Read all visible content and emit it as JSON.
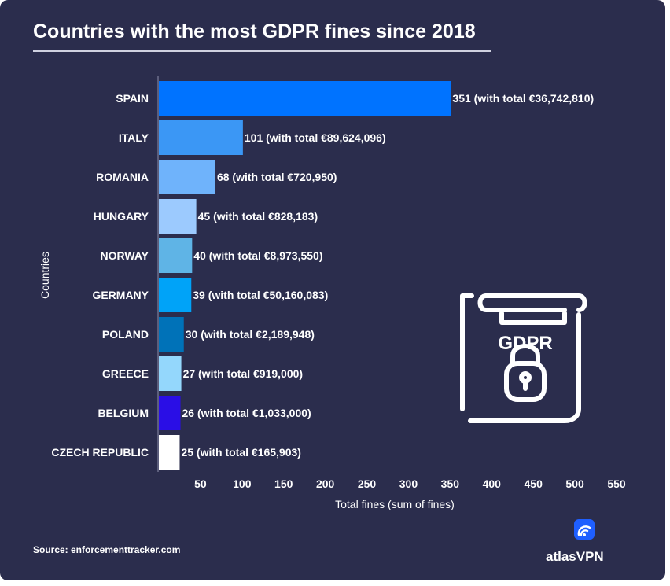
{
  "page": {
    "title": "Countries with the most GDPR fines since 2018",
    "source": "Source: enforcementtracker.com",
    "brand": "atlasVPN",
    "illustration_text": "GDPR"
  },
  "chart_data": {
    "type": "bar",
    "orientation": "horizontal",
    "title": "Countries with the most GDPR fines since 2018",
    "xlabel": "Total fines (sum of fines)",
    "ylabel": "Countries",
    "xlim": [
      0,
      550
    ],
    "xticks": [
      50,
      100,
      150,
      200,
      250,
      300,
      350,
      400,
      450,
      500,
      550
    ],
    "grid": false,
    "categories": [
      "SPAIN",
      "ITALY",
      "ROMANIA",
      "HUNGARY",
      "NORWAY",
      "GERMANY",
      "POLAND",
      "GREECE",
      "BELGIUM",
      "CZECH REPUBLIC"
    ],
    "values": [
      351,
      101,
      68,
      45,
      40,
      39,
      30,
      27,
      26,
      25
    ],
    "data_labels": [
      "351 (with total €36,742,810)",
      "101 (with total €89,624,096)",
      "68 (with total €720,950)",
      "45 (with total €828,183)",
      "40 (with total €8,973,550)",
      "39 (with total €50,160,083)",
      "30 (with total €2,189,948)",
      "27 (with total €919,000)",
      "26 (with total €1,033,000)",
      "25 (with total €165,903)"
    ],
    "colors": [
      "#0073ff",
      "#3b97f5",
      "#6fb3fb",
      "#9ccafe",
      "#5fb4e6",
      "#00a3f8",
      "#0072b8",
      "#94d7fc",
      "#2a0ee6",
      "#ffffff"
    ]
  },
  "theme": {
    "background": "#2b2d4d",
    "text": "#ffffff",
    "axis_line": "#8d90aa"
  }
}
